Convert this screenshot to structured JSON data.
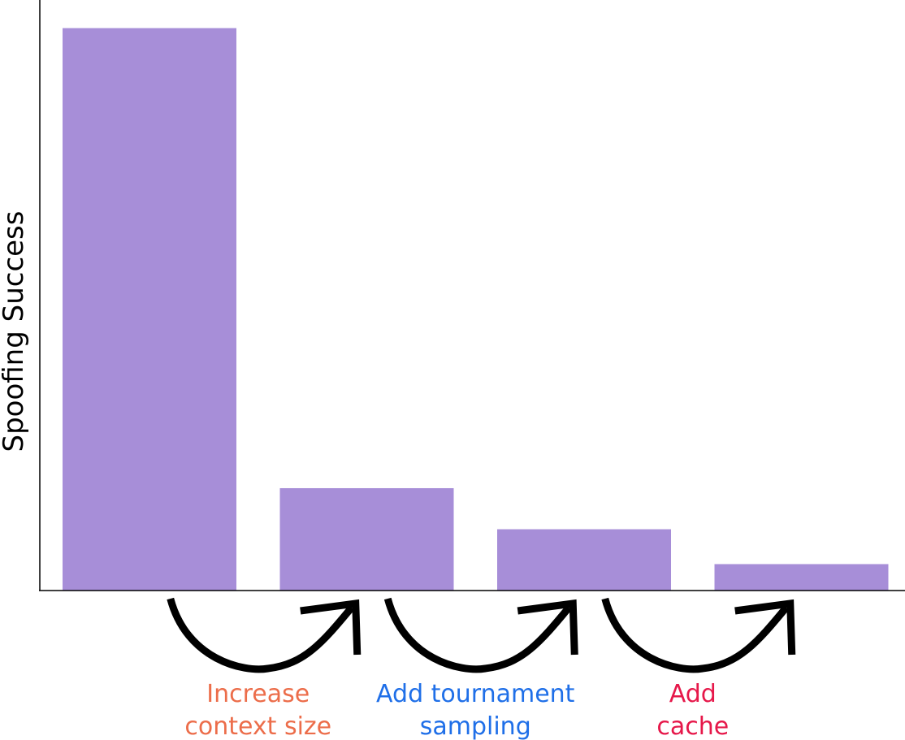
{
  "chart_data": {
    "type": "bar",
    "categories": [
      "",
      "",
      "",
      ""
    ],
    "values": [
      1.0,
      0.182,
      0.109,
      0.047
    ],
    "title": "",
    "xlabel": "",
    "ylabel": "Spoofing Success",
    "ylim": [
      0,
      1.05
    ],
    "grid": false,
    "bar_color": "#a78ed8",
    "annotations": [
      {
        "from": 0,
        "to": 1,
        "lines": [
          "Increase",
          "context size"
        ],
        "color": "#ec6d4a"
      },
      {
        "from": 1,
        "to": 2,
        "lines": [
          "Add tournament",
          "sampling"
        ],
        "color": "#1f6fe8"
      },
      {
        "from": 2,
        "to": 3,
        "lines": [
          "Add",
          "cache"
        ],
        "color": "#e6184a"
      }
    ]
  }
}
